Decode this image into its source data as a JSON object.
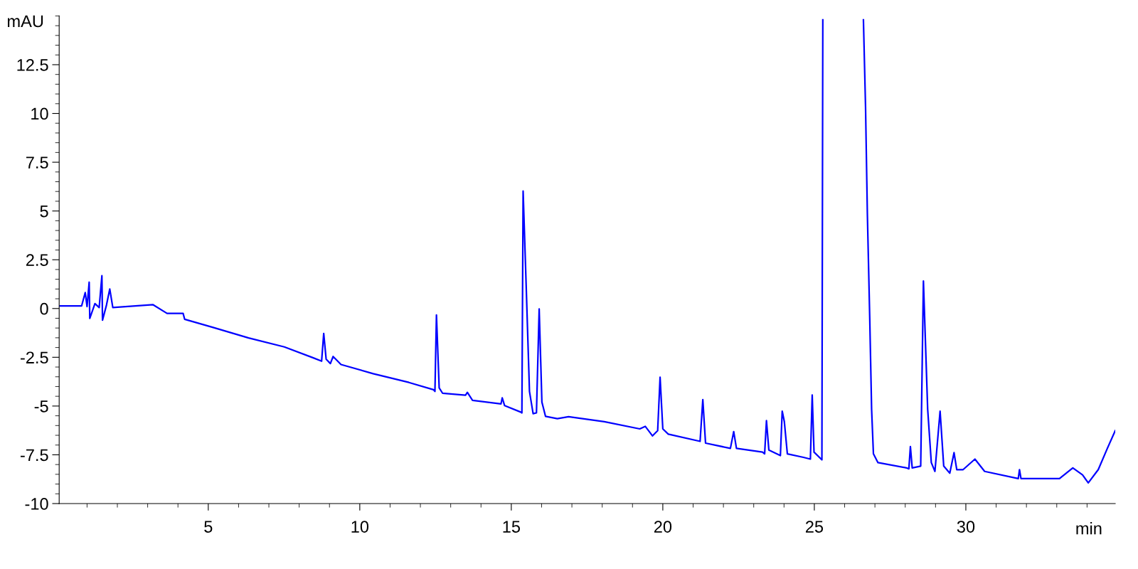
{
  "chart_data": {
    "type": "line",
    "xlabel": "min",
    "ylabel": "mAU",
    "x": [
      0.08,
      0.82,
      0.94,
      1.0,
      1.07,
      1.09,
      1.26,
      1.4,
      1.49,
      1.51,
      1.64,
      1.75,
      1.85,
      3.17,
      3.64,
      4.17,
      4.22,
      5.16,
      6.33,
      7.51,
      8.45,
      8.74,
      8.81,
      8.89,
      9.03,
      9.12,
      9.38,
      10.44,
      11.62,
      12.43,
      12.48,
      12.53,
      12.62,
      12.73,
      13.49,
      13.55,
      13.72,
      14.66,
      14.7,
      14.78,
      15.31,
      15.35,
      15.39,
      15.49,
      15.6,
      15.72,
      15.83,
      15.92,
      16.01,
      16.13,
      16.52,
      16.89,
      18.07,
      19.24,
      19.42,
      19.66,
      19.83,
      19.91,
      20.0,
      20.18,
      21.23,
      21.32,
      21.41,
      22.23,
      22.34,
      22.43,
      23.29,
      23.36,
      23.42,
      23.5,
      23.88,
      23.94,
      24.01,
      24.11,
      24.64,
      24.87,
      24.93,
      24.99,
      25.25,
      25.28,
      25.95,
      26.62,
      26.69,
      26.75,
      26.83,
      26.89,
      26.95,
      27.1,
      28.04,
      28.12,
      28.17,
      28.23,
      28.51,
      28.6,
      28.74,
      28.86,
      28.98,
      29.15,
      29.27,
      29.47,
      29.61,
      29.7,
      29.91,
      30.3,
      30.62,
      31.73,
      31.77,
      31.82,
      33.09,
      33.53,
      33.85,
      34.04,
      34.37,
      34.67,
      34.93
    ],
    "series": [
      {
        "color": "#0000ff",
        "values": [
          0.13,
          0.13,
          0.82,
          0.1,
          1.35,
          -0.51,
          0.25,
          0.05,
          1.68,
          -0.6,
          0.17,
          1.0,
          0.05,
          0.2,
          -0.25,
          -0.25,
          -0.55,
          -0.97,
          -1.51,
          -1.97,
          -2.52,
          -2.7,
          -1.28,
          -2.6,
          -2.82,
          -2.46,
          -2.87,
          -3.34,
          -3.79,
          -4.16,
          -4.25,
          -0.33,
          -4.07,
          -4.34,
          -4.44,
          -4.3,
          -4.71,
          -4.89,
          -4.58,
          -4.98,
          -5.31,
          -5.35,
          6.02,
          1.22,
          -4.25,
          -5.39,
          -5.35,
          -0.02,
          -4.8,
          -5.53,
          -5.65,
          -5.55,
          -5.8,
          -6.17,
          -6.04,
          -6.53,
          -6.26,
          -3.52,
          -6.17,
          -6.44,
          -6.81,
          -4.67,
          -6.9,
          -7.17,
          -6.31,
          -7.17,
          -7.36,
          -7.45,
          -5.75,
          -7.26,
          -7.54,
          -5.26,
          -5.8,
          -7.45,
          -7.63,
          -7.72,
          -4.43,
          -7.36,
          -7.76,
          14.8,
          null,
          14.8,
          10.35,
          4.87,
          -0.6,
          -5.16,
          -7.45,
          -7.9,
          -8.17,
          -8.22,
          -7.08,
          -8.17,
          -8.08,
          1.41,
          -5.16,
          -7.9,
          -8.35,
          -5.26,
          -8.08,
          -8.44,
          -7.39,
          -8.26,
          -8.26,
          -7.72,
          -8.35,
          -8.72,
          -8.26,
          -8.72,
          -8.72,
          -8.17,
          -8.53,
          -8.94,
          -8.26,
          -7.17,
          -6.26
        ]
      }
    ],
    "xlim": [
      0.08,
      34.93
    ],
    "xticks": [
      5,
      10,
      15,
      20,
      25,
      30
    ],
    "ylim": [
      -10,
      15
    ],
    "yticks": [
      -10,
      -7.5,
      -5,
      -2.5,
      0,
      2.5,
      5,
      7.5,
      10,
      12.5
    ],
    "line_style": "solid",
    "grid": false,
    "legend": false
  }
}
